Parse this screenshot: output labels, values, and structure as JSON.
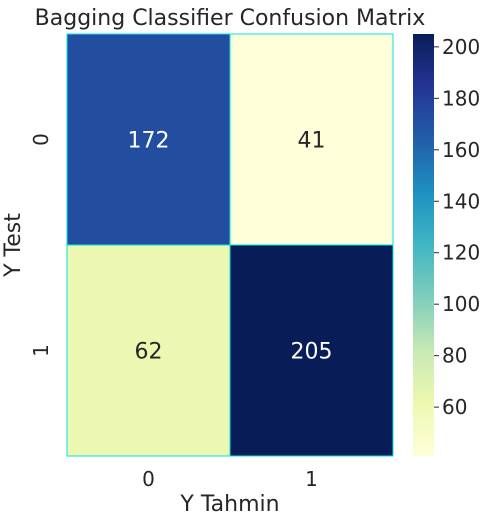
{
  "chart_data": {
    "type": "heatmap",
    "title": "Bagging Classifier Confusion Matrix",
    "xlabel": "Y Tahmin",
    "ylabel": "Y Test",
    "x_categories": [
      "0",
      "1"
    ],
    "y_categories": [
      "0",
      "1"
    ],
    "values": [
      [
        172,
        41
      ],
      [
        62,
        205
      ]
    ],
    "colormap": "YlGnBu",
    "cell_border_color": "#00e5e5",
    "colorbar": {
      "min": 41,
      "max": 205,
      "ticks": [
        60,
        80,
        100,
        120,
        140,
        160,
        180,
        200
      ],
      "tick_labels": [
        "60",
        "80",
        "100",
        "120",
        "140",
        "160",
        "180",
        "200"
      ]
    },
    "annotations": true
  }
}
